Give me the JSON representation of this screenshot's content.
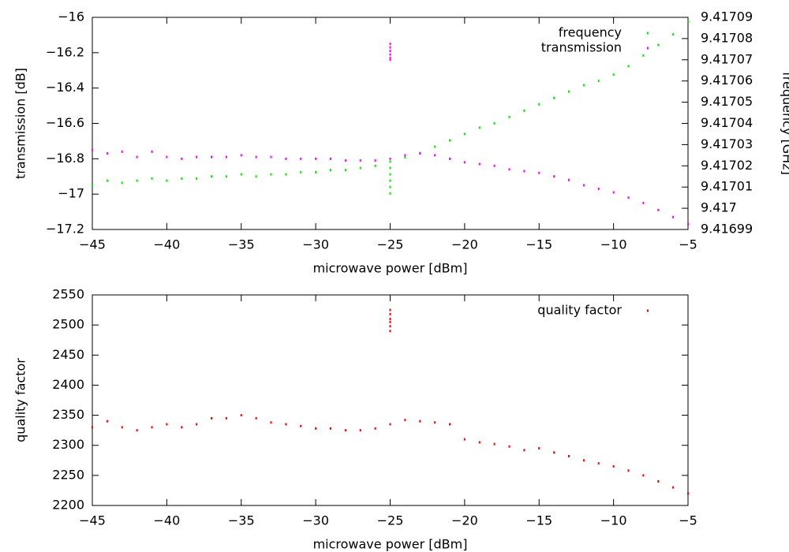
{
  "chart_data": [
    {
      "type": "scatter",
      "xlabel": "microwave power [dBm]",
      "ylabel": "transmission [dB]",
      "y2label": "frequency [GHz]",
      "xlim": [
        -45,
        -5
      ],
      "xticks": [
        {
          "value": -45,
          "label": "−45"
        },
        {
          "value": -40,
          "label": "−40"
        },
        {
          "value": -35,
          "label": "−35"
        },
        {
          "value": -30,
          "label": "−30"
        },
        {
          "value": -25,
          "label": "−25"
        },
        {
          "value": -20,
          "label": "−20"
        },
        {
          "value": -15,
          "label": "−15"
        },
        {
          "value": -10,
          "label": "−10"
        },
        {
          "value": -5,
          "label": "−5"
        }
      ],
      "ylim": [
        -17.2,
        -16
      ],
      "yticks": [
        {
          "value": -17.2,
          "label": "−17.2"
        },
        {
          "value": -17,
          "label": "−17"
        },
        {
          "value": -16.8,
          "label": "−16.8"
        },
        {
          "value": -16.6,
          "label": "−16.6"
        },
        {
          "value": -16.4,
          "label": "−16.4"
        },
        {
          "value": -16.2,
          "label": "−16.2"
        },
        {
          "value": -16,
          "label": "−16"
        }
      ],
      "y2lim": [
        9.41699,
        9.41709
      ],
      "y2ticks": [
        9.41699,
        9.417,
        9.41701,
        9.41702,
        9.41703,
        9.41704,
        9.41705,
        9.41706,
        9.41707,
        9.41708,
        9.41709
      ],
      "legend": "top right",
      "x": [
        -45,
        -44,
        -43,
        -42,
        -41,
        -40,
        -39,
        -38,
        -37,
        -36,
        -35,
        -34,
        -33,
        -32,
        -31,
        -30,
        -29,
        -28,
        -27,
        -26,
        -25,
        -24,
        -23,
        -22,
        -21,
        -20,
        -19,
        -18,
        -17,
        -16,
        -15,
        -14,
        -13,
        -12,
        -11,
        -10,
        -9,
        -8,
        -7,
        -6,
        -5,
        -25,
        -25,
        -25,
        -25,
        -25,
        -25
      ],
      "series": [
        {
          "name": "frequency",
          "color": "#00ee00",
          "axis": "y2",
          "values": [
            9.417011,
            9.417013,
            9.417012,
            9.417013,
            9.417014,
            9.417013,
            9.417014,
            9.417014,
            9.417015,
            9.417015,
            9.417016,
            9.417015,
            9.417016,
            9.417016,
            9.417017,
            9.417017,
            9.417018,
            9.417018,
            9.417019,
            9.41702,
            9.417022,
            9.417024,
            9.417026,
            9.417029,
            9.417032,
            9.417035,
            9.417038,
            9.41704,
            9.417043,
            9.417046,
            9.417049,
            9.417052,
            9.417055,
            9.417058,
            9.41706,
            9.417063,
            9.417067,
            9.417072,
            9.417077,
            9.417082,
            9.417088,
            9.417007,
            9.41701,
            9.417013,
            9.417016,
            9.417019,
            9.417022
          ]
        },
        {
          "name": "transmission",
          "color": "#ff00ff",
          "values": [
            -16.75,
            -16.77,
            -16.76,
            -16.79,
            -16.76,
            -16.79,
            -16.8,
            -16.79,
            -16.79,
            -16.79,
            -16.78,
            -16.79,
            -16.79,
            -16.8,
            -16.8,
            -16.8,
            -16.8,
            -16.81,
            -16.81,
            -16.81,
            -16.8,
            -16.78,
            -16.77,
            -16.78,
            -16.8,
            -16.82,
            -16.83,
            -16.84,
            -16.86,
            -16.87,
            -16.88,
            -16.9,
            -16.92,
            -16.95,
            -16.97,
            -16.99,
            -17.02,
            -17.05,
            -17.09,
            -17.13,
            -17.17,
            -16.15,
            -16.17,
            -16.19,
            -16.21,
            -16.23,
            -16.24
          ]
        }
      ]
    },
    {
      "type": "scatter",
      "xlabel": "microwave power [dBm]",
      "ylabel": "quality factor",
      "xlim": [
        -45,
        -5
      ],
      "xticks": [
        {
          "value": -45,
          "label": "−45"
        },
        {
          "value": -40,
          "label": "−40"
        },
        {
          "value": -35,
          "label": "−35"
        },
        {
          "value": -30,
          "label": "−30"
        },
        {
          "value": -25,
          "label": "−25"
        },
        {
          "value": -20,
          "label": "−20"
        },
        {
          "value": -15,
          "label": "−15"
        },
        {
          "value": -10,
          "label": "−10"
        },
        {
          "value": -5,
          "label": "−5"
        }
      ],
      "ylim": [
        2200,
        2550
      ],
      "yticks": [
        2200,
        2250,
        2300,
        2350,
        2400,
        2450,
        2500,
        2550
      ],
      "legend": "top right",
      "x": [
        -45,
        -44,
        -43,
        -42,
        -41,
        -40,
        -39,
        -38,
        -37,
        -36,
        -35,
        -34,
        -33,
        -32,
        -31,
        -30,
        -29,
        -28,
        -27,
        -26,
        -25,
        -24,
        -23,
        -22,
        -21,
        -20,
        -19,
        -18,
        -17,
        -16,
        -15,
        -14,
        -13,
        -12,
        -11,
        -10,
        -9,
        -8,
        -7,
        -6,
        -5,
        -25,
        -25,
        -25,
        -25,
        -25,
        -25
      ],
      "series": [
        {
          "name": "quality factor",
          "color": "#ff0000",
          "values": [
            2330,
            2340,
            2330,
            2325,
            2330,
            2335,
            2330,
            2335,
            2345,
            2345,
            2350,
            2345,
            2338,
            2335,
            2332,
            2328,
            2328,
            2325,
            2325,
            2328,
            2335,
            2342,
            2340,
            2338,
            2335,
            2310,
            2305,
            2302,
            2298,
            2292,
            2295,
            2288,
            2282,
            2275,
            2270,
            2265,
            2258,
            2250,
            2240,
            2230,
            2220,
            2490,
            2498,
            2505,
            2510,
            2518,
            2525
          ]
        }
      ]
    }
  ]
}
